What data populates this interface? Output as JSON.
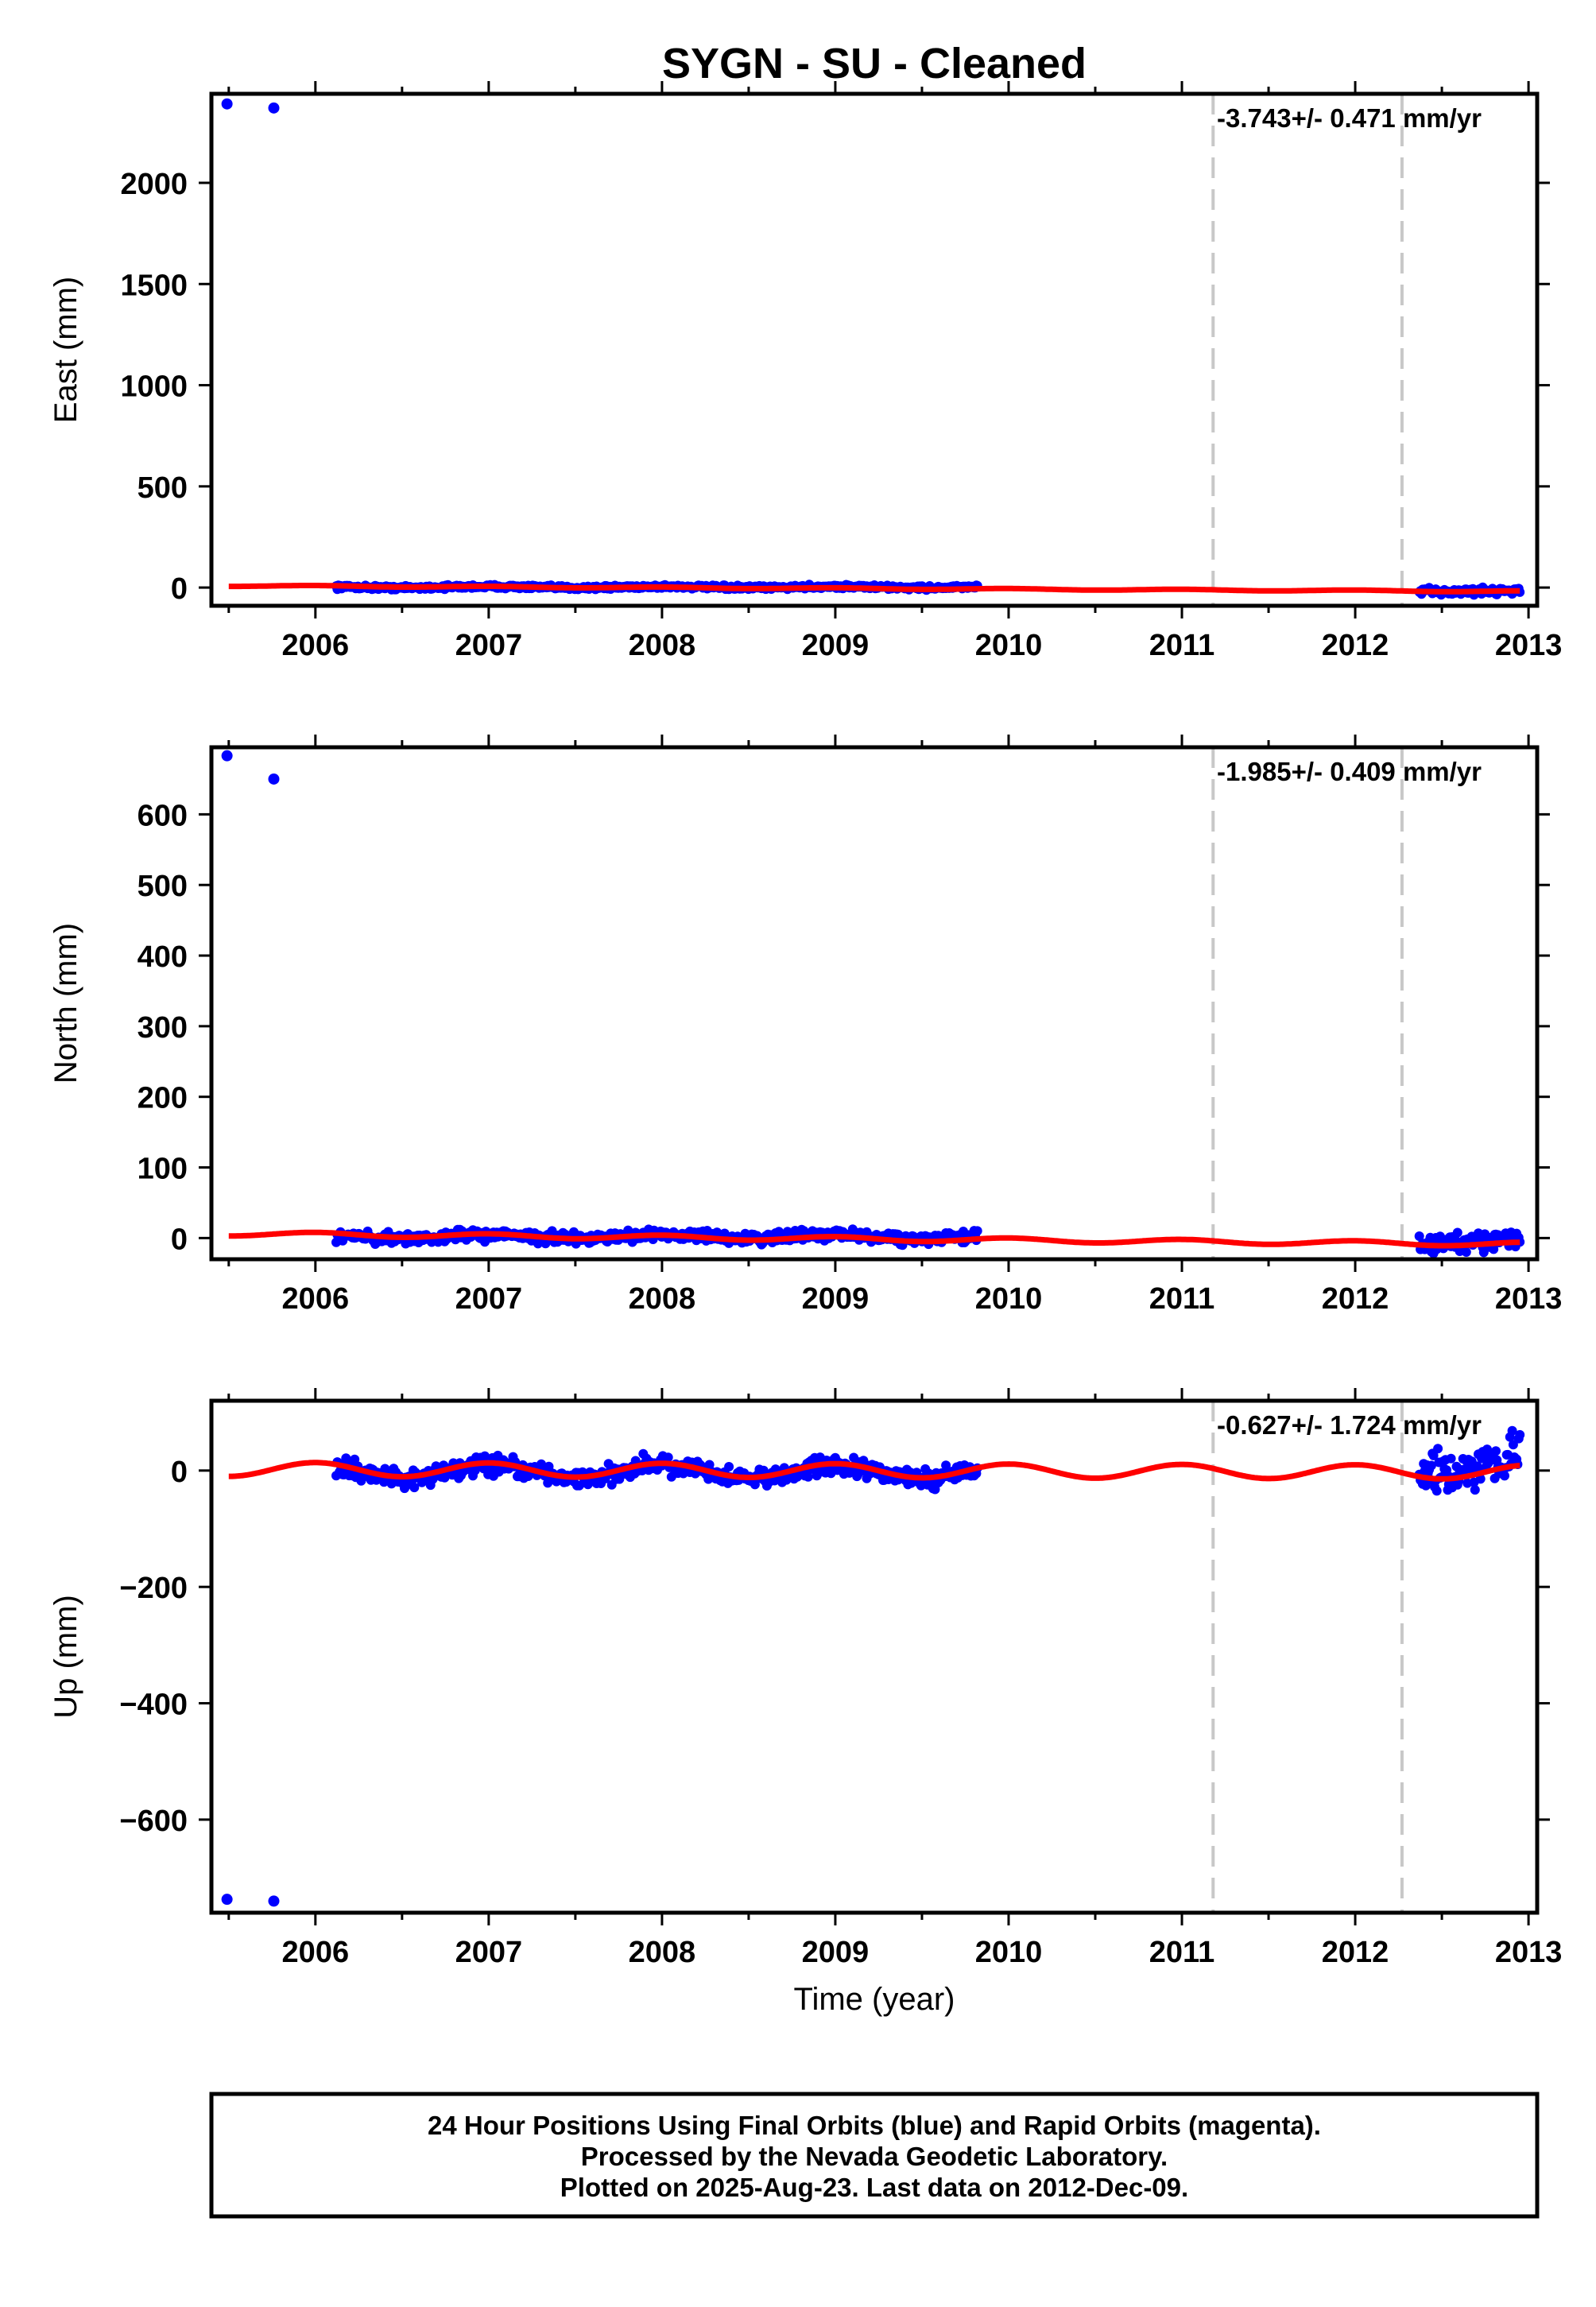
{
  "title": "SYGN  - SU - Cleaned",
  "xlabel": "Time (year)",
  "footer": {
    "line1": "24 Hour Positions Using Final Orbits (blue) and Rapid Orbits (magenta).",
    "line2": "Processed by the Nevada Geodetic Laboratory.",
    "line3": "Plotted on 2025-Aug-23. Last data on 2012-Dec-09."
  },
  "colors": {
    "data_points": "#0000ff",
    "fit_line": "#ff0000",
    "break_lines": "#c8c8c8",
    "frame": "#000000"
  },
  "chart_data": [
    {
      "type": "scatter",
      "name": "east",
      "ylabel": "East (mm)",
      "rate_label": "-3.743+/- 0.471 mm/yr",
      "xlim": [
        2005.4,
        2013.05
      ],
      "ylim": [
        -90,
        2440
      ],
      "xticks": [
        2006,
        2007,
        2008,
        2009,
        2010,
        2011,
        2012,
        2013
      ],
      "yticks": [
        0,
        500,
        1000,
        1500,
        2000
      ],
      "step_lines": [
        2011.18,
        2012.27
      ],
      "outliers": [
        [
          2005.49,
          2390
        ],
        [
          2005.76,
          2370
        ]
      ],
      "data_segments": [
        [
          2006.12,
          2009.82,
          2,
          7
        ],
        [
          2012.37,
          2012.95,
          -17,
          12
        ]
      ],
      "fit": {
        "start": 2005.5,
        "end": 2012.95,
        "intercept_at_start": 9,
        "rate": -3.743,
        "seasonal_amplitude": 3
      }
    },
    {
      "type": "scatter",
      "name": "north",
      "ylabel": "North (mm)",
      "rate_label": "-1.985+/- 0.409 mm/yr",
      "xlim": [
        2005.4,
        2013.05
      ],
      "ylim": [
        -30,
        695
      ],
      "xticks": [
        2006,
        2007,
        2008,
        2009,
        2010,
        2011,
        2012,
        2013
      ],
      "yticks": [
        0,
        100,
        200,
        300,
        400,
        500,
        600
      ],
      "step_lines": [
        2011.18,
        2012.27
      ],
      "outliers": [
        [
          2005.49,
          683
        ],
        [
          2005.76,
          650
        ]
      ],
      "data_segments": [
        [
          2006.12,
          2009.82,
          2,
          6
        ],
        [
          2012.37,
          2012.95,
          -5,
          10
        ]
      ],
      "fit": {
        "start": 2005.5,
        "end": 2012.95,
        "intercept_at_start": 6,
        "rate": -1.985,
        "seasonal_amplitude": 3
      }
    },
    {
      "type": "scatter",
      "name": "up",
      "ylabel": "Up (mm)",
      "rate_label": "-0.627+/- 1.724 mm/yr",
      "xlim": [
        2005.4,
        2013.05
      ],
      "ylim": [
        -760,
        120
      ],
      "xticks": [
        2006,
        2007,
        2008,
        2009,
        2010,
        2011,
        2012,
        2013
      ],
      "yticks": [
        0,
        -200,
        -400,
        -600
      ],
      "step_lines": [
        2011.18,
        2012.27
      ],
      "outliers": [
        [
          2005.49,
          -737
        ],
        [
          2005.76,
          -740
        ]
      ],
      "data_segments": [
        [
          2006.12,
          2009.82,
          -2,
          12
        ],
        [
          2012.37,
          2012.95,
          12,
          28
        ]
      ],
      "fit": {
        "start": 2005.5,
        "end": 2012.95,
        "intercept_at_start": 2,
        "rate": -0.627,
        "seasonal_amplitude": 12
      }
    }
  ]
}
